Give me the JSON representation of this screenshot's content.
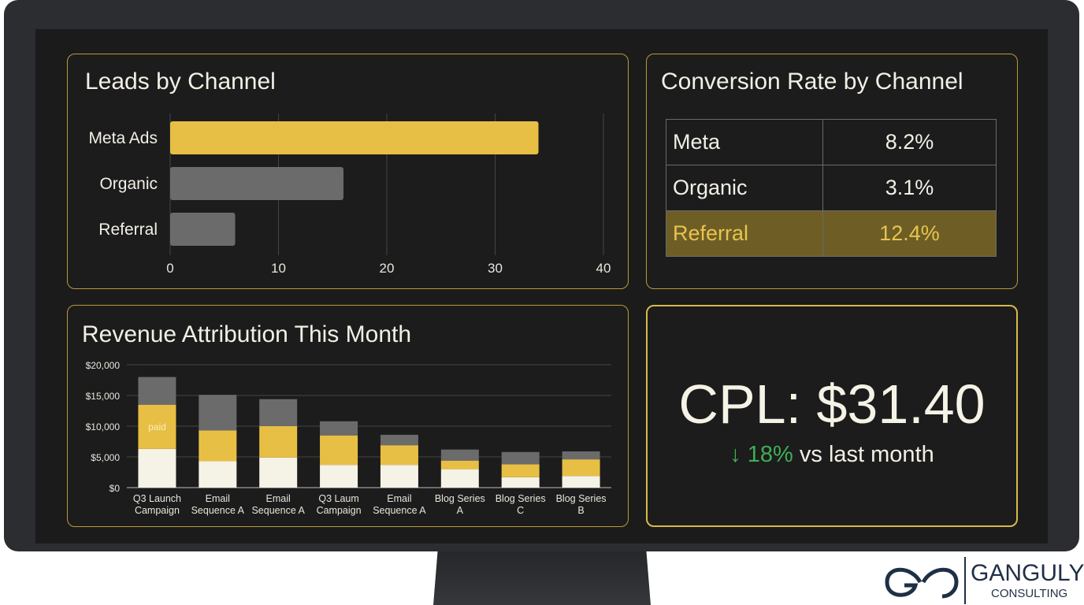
{
  "leads": {
    "title": "Leads by Channel",
    "chart_data": {
      "type": "bar",
      "orientation": "horizontal",
      "categories": [
        "Meta Ads",
        "Organic",
        "Referral"
      ],
      "values": [
        34,
        16,
        6
      ],
      "xlim": [
        0,
        40
      ],
      "xticks": [
        "0",
        "10",
        "20",
        "30",
        "40"
      ],
      "grid": true,
      "colors": [
        "#e8bf45",
        "#6b6b6b",
        "#6b6b6b"
      ]
    }
  },
  "conversion": {
    "title": "Conversion Rate by Channel",
    "rows": [
      {
        "channel": "Meta",
        "rate": "8.2%"
      },
      {
        "channel": "Organic",
        "rate": "3.1%"
      },
      {
        "channel": "Referral",
        "rate": "12.4%",
        "highlight": true
      }
    ]
  },
  "revenue": {
    "title": "Revenue Attribution This Month",
    "chart_data": {
      "type": "bar",
      "stacked": true,
      "categories": [
        "Q3 Launch Campaign",
        "Email Sequence A",
        "Email Sequence A",
        "Q3 Laum Campaign",
        "Email Sequence A",
        "Blog Series A",
        "Blog Series C",
        "Blog Series B"
      ],
      "category_lines": [
        [
          "Q3 Launch",
          "Campaign"
        ],
        [
          "Email",
          "Sequence A"
        ],
        [
          "Email",
          "Sequence A"
        ],
        [
          "Q3 Laum",
          "Campaign"
        ],
        [
          "Email",
          "Sequence A"
        ],
        [
          "Blog Series",
          "A"
        ],
        [
          "Blog Series",
          "C"
        ],
        [
          "Blog Series",
          "B"
        ]
      ],
      "series": [
        {
          "values": [
            6300,
            4300,
            4900,
            3700,
            3700,
            3000,
            1700,
            1900
          ],
          "color": "#f5f2e6"
        },
        {
          "values": [
            7200,
            5000,
            5100,
            4800,
            3200,
            1400,
            2100,
            2700
          ],
          "color": "#e8bf45"
        },
        {
          "values": [
            4500,
            5800,
            4400,
            2300,
            1700,
            1800,
            2000,
            1300
          ],
          "color": "#6b6b6b"
        }
      ],
      "annotation": "paid",
      "ylim": [
        0,
        20000
      ],
      "yticks": [
        "$0",
        "$5,000",
        "$10,000",
        "$15,000",
        "$20,000"
      ],
      "grid": true
    }
  },
  "cpl": {
    "value": "CPL: $31.40",
    "arrow": "↓",
    "change": "18%",
    "suffix": "vs last month",
    "change_color": "#3fae55"
  },
  "logo": {
    "name": "GANGULY",
    "sub": "CONSULTING"
  }
}
